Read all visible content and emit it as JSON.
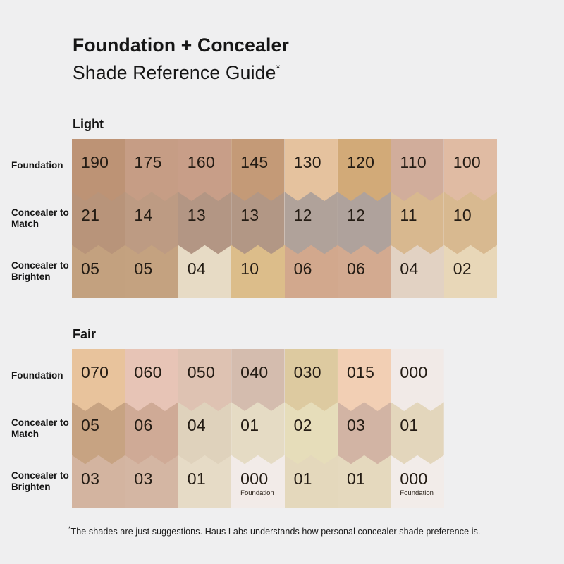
{
  "page": {
    "background_color": "#efeff0",
    "title_line1": "Foundation + Concealer",
    "title_line2": "Shade Reference Guide",
    "title_footnote_marker": "*",
    "footnote_marker": "*",
    "footnote_text": "The shades are just suggestions. Haus Labs understands how personal concealer shade preference is."
  },
  "chart_data": {
    "type": "table",
    "title": "Foundation + Concealer Shade Reference Guide",
    "row_labels": [
      "Foundation",
      "Concealer to Match",
      "Concealer to Brighten"
    ],
    "sections": [
      {
        "name": "Light",
        "rows": [
          {
            "label": "Foundation",
            "cells": [
              {
                "value": "190",
                "color": "#bd9375"
              },
              {
                "value": "175",
                "color": "#c69d85"
              },
              {
                "value": "160",
                "color": "#c89e88"
              },
              {
                "value": "145",
                "color": "#c49a77"
              },
              {
                "value": "130",
                "color": "#e5c29e"
              },
              {
                "value": "120",
                "color": "#d2aa78"
              },
              {
                "value": "110",
                "color": "#d1ad9b"
              },
              {
                "value": "100",
                "color": "#e0bba3"
              }
            ]
          },
          {
            "label": "Concealer to Match",
            "cells": [
              {
                "value": "21",
                "color": "#b8947a"
              },
              {
                "value": "14",
                "color": "#bd9b83"
              },
              {
                "value": "13",
                "color": "#b39684"
              },
              {
                "value": "13",
                "color": "#b29785"
              },
              {
                "value": "12",
                "color": "#b0a29a"
              },
              {
                "value": "12",
                "color": "#afa29c"
              },
              {
                "value": "11",
                "color": "#d8b88f"
              },
              {
                "value": "10",
                "color": "#d8b990"
              }
            ]
          },
          {
            "label": "Concealer to Brighten",
            "cells": [
              {
                "value": "05",
                "color": "#c3a17f"
              },
              {
                "value": "05",
                "color": "#c4a280"
              },
              {
                "value": "04",
                "color": "#e7dbc5"
              },
              {
                "value": "10",
                "color": "#dcbd8a"
              },
              {
                "value": "06",
                "color": "#d2a88d"
              },
              {
                "value": "06",
                "color": "#d3aa90"
              },
              {
                "value": "04",
                "color": "#e2d2c3"
              },
              {
                "value": "02",
                "color": "#e8d7b8"
              }
            ]
          }
        ]
      },
      {
        "name": "Fair",
        "rows": [
          {
            "label": "Foundation",
            "cells": [
              {
                "value": "070",
                "color": "#e8c39c"
              },
              {
                "value": "060",
                "color": "#e7c4b6"
              },
              {
                "value": "050",
                "color": "#dec2b2"
              },
              {
                "value": "040",
                "color": "#d4bcae"
              },
              {
                "value": "030",
                "color": "#ddcaa0"
              },
              {
                "value": "015",
                "color": "#f2cfb4"
              },
              {
                "value": "000",
                "color": "#f1eae7"
              }
            ]
          },
          {
            "label": "Concealer to Match",
            "cells": [
              {
                "value": "05",
                "color": "#c7a382"
              },
              {
                "value": "06",
                "color": "#cfaa96"
              },
              {
                "value": "04",
                "color": "#dfd2bc"
              },
              {
                "value": "01",
                "color": "#e5dbc4"
              },
              {
                "value": "02",
                "color": "#e6ddba"
              },
              {
                "value": "03",
                "color": "#d2b4a4"
              },
              {
                "value": "01",
                "color": "#e3d6bc"
              }
            ]
          },
          {
            "label": "Concealer to Brighten",
            "cells": [
              {
                "value": "03",
                "color": "#d3b4a0"
              },
              {
                "value": "03",
                "color": "#d4b6a3"
              },
              {
                "value": "01",
                "color": "#e6dbc6"
              },
              {
                "value": "000",
                "sublabel": "Foundation",
                "color": "#f2ebe8"
              },
              {
                "value": "01",
                "color": "#e4d8bc"
              },
              {
                "value": "01",
                "color": "#e5d9be"
              },
              {
                "value": "000",
                "sublabel": "Foundation",
                "color": "#f2ece9"
              }
            ]
          }
        ]
      }
    ]
  }
}
